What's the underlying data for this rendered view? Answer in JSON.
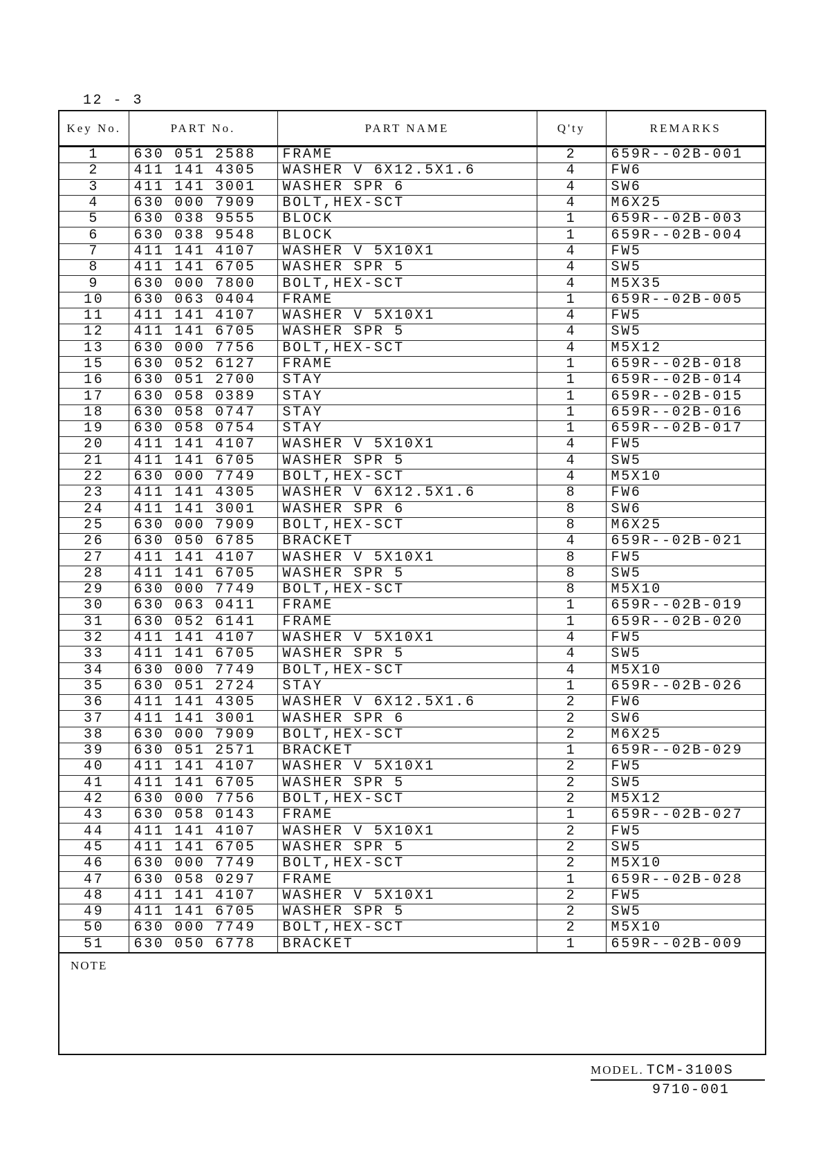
{
  "page_number": "12 - 3",
  "table": {
    "headers": [
      "Key No.",
      "PART No.",
      "PART NAME",
      "Q'ty",
      "REMARKS"
    ],
    "rows": [
      [
        "1",
        "630 051 2588",
        "FRAME",
        "2",
        "659R--02B-001"
      ],
      [
        "2",
        "411 141 4305",
        "WASHER V 6X12.5X1.6",
        "4",
        "FW6"
      ],
      [
        "3",
        "411 141 3001",
        "WASHER SPR 6",
        "4",
        "SW6"
      ],
      [
        "4",
        "630 000 7909",
        "BOLT,HEX-SCT",
        "4",
        "M6X25"
      ],
      [
        "5",
        "630 038 9555",
        "BLOCK",
        "1",
        "659R--02B-003"
      ],
      [
        "6",
        "630 038 9548",
        "BLOCK",
        "1",
        "659R--02B-004"
      ],
      [
        "7",
        "411 141 4107",
        "WASHER V 5X10X1",
        "4",
        "FW5"
      ],
      [
        "8",
        "411 141 6705",
        "WASHER SPR 5",
        "4",
        "SW5"
      ],
      [
        "9",
        "630 000 7800",
        "BOLT,HEX-SCT",
        "4",
        "M5X35"
      ],
      [
        "10",
        "630 063 0404",
        "FRAME",
        "1",
        "659R--02B-005"
      ],
      [
        "11",
        "411 141 4107",
        "WASHER V 5X10X1",
        "4",
        "FW5"
      ],
      [
        "12",
        "411 141 6705",
        "WASHER SPR 5",
        "4",
        "SW5"
      ],
      [
        "13",
        "630 000 7756",
        "BOLT,HEX-SCT",
        "4",
        "M5X12"
      ],
      [
        "15",
        "630 052 6127",
        "FRAME",
        "1",
        "659R--02B-018"
      ],
      [
        "16",
        "630 051 2700",
        "STAY",
        "1",
        "659R--02B-014"
      ],
      [
        "17",
        "630 058 0389",
        "STAY",
        "1",
        "659R--02B-015"
      ],
      [
        "18",
        "630 058 0747",
        "STAY",
        "1",
        "659R--02B-016"
      ],
      [
        "19",
        "630 058 0754",
        "STAY",
        "1",
        "659R--02B-017"
      ],
      [
        "20",
        "411 141 4107",
        "WASHER V 5X10X1",
        "4",
        "FW5"
      ],
      [
        "21",
        "411 141 6705",
        "WASHER SPR 5",
        "4",
        "SW5"
      ],
      [
        "22",
        "630 000 7749",
        "BOLT,HEX-SCT",
        "4",
        "M5X10"
      ],
      [
        "23",
        "411 141 4305",
        "WASHER V 6X12.5X1.6",
        "8",
        "FW6"
      ],
      [
        "24",
        "411 141 3001",
        "WASHER SPR 6",
        "8",
        "SW6"
      ],
      [
        "25",
        "630 000 7909",
        "BOLT,HEX-SCT",
        "8",
        "M6X25"
      ],
      [
        "26",
        "630 050 6785",
        "BRACKET",
        "4",
        "659R--02B-021"
      ],
      [
        "27",
        "411 141 4107",
        "WASHER V 5X10X1",
        "8",
        "FW5"
      ],
      [
        "28",
        "411 141 6705",
        "WASHER SPR 5",
        "8",
        "SW5"
      ],
      [
        "29",
        "630 000 7749",
        "BOLT,HEX-SCT",
        "8",
        "M5X10"
      ],
      [
        "30",
        "630 063 0411",
        "FRAME",
        "1",
        "659R--02B-019"
      ],
      [
        "31",
        "630 052 6141",
        "FRAME",
        "1",
        "659R--02B-020"
      ],
      [
        "32",
        "411 141 4107",
        "WASHER V 5X10X1",
        "4",
        "FW5"
      ],
      [
        "33",
        "411 141 6705",
        "WASHER SPR 5",
        "4",
        "SW5"
      ],
      [
        "34",
        "630 000 7749",
        "BOLT,HEX-SCT",
        "4",
        "M5X10"
      ],
      [
        "35",
        "630 051 2724",
        "STAY",
        "1",
        "659R--02B-026"
      ],
      [
        "36",
        "411 141 4305",
        "WASHER V 6X12.5X1.6",
        "2",
        "FW6"
      ],
      [
        "37",
        "411 141 3001",
        "WASHER SPR 6",
        "2",
        "SW6"
      ],
      [
        "38",
        "630 000 7909",
        "BOLT,HEX-SCT",
        "2",
        "M6X25"
      ],
      [
        "39",
        "630 051 2571",
        "BRACKET",
        "1",
        "659R--02B-029"
      ],
      [
        "40",
        "411 141 4107",
        "WASHER V 5X10X1",
        "2",
        "FW5"
      ],
      [
        "41",
        "411 141 6705",
        "WASHER SPR 5",
        "2",
        "SW5"
      ],
      [
        "42",
        "630 000 7756",
        "BOLT,HEX-SCT",
        "2",
        "M5X12"
      ],
      [
        "43",
        "630 058 0143",
        "FRAME",
        "1",
        "659R--02B-027"
      ],
      [
        "44",
        "411 141 4107",
        "WASHER V 5X10X1",
        "2",
        "FW5"
      ],
      [
        "45",
        "411 141 6705",
        "WASHER SPR 5",
        "2",
        "SW5"
      ],
      [
        "46",
        "630 000 7749",
        "BOLT,HEX-SCT",
        "2",
        "M5X10"
      ],
      [
        "47",
        "630 058 0297",
        "FRAME",
        "1",
        "659R--02B-028"
      ],
      [
        "48",
        "411 141 4107",
        "WASHER V 5X10X1",
        "2",
        "FW5"
      ],
      [
        "49",
        "411 141 6705",
        "WASHER SPR 5",
        "2",
        "SW5"
      ],
      [
        "50",
        "630 000 7749",
        "BOLT,HEX-SCT",
        "2",
        "M5X10"
      ],
      [
        "51",
        "630 050 6778",
        "BRACKET",
        "1",
        "659R--02B-009"
      ]
    ],
    "note_label": "NOTE"
  },
  "footer": {
    "model_label": "MODEL.",
    "model": "TCM-3100S",
    "doc_code": "9710-001"
  }
}
